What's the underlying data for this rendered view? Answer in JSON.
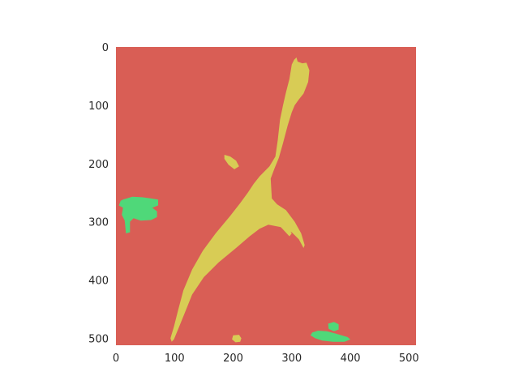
{
  "chart_data": {
    "type": "heatmap",
    "title": "",
    "xlabel": "",
    "ylabel": "",
    "xlim": [
      0,
      512
    ],
    "ylim": [
      512,
      0
    ],
    "grid": false,
    "x_ticks": [
      0,
      100,
      200,
      300,
      400,
      500
    ],
    "y_ticks": [
      0,
      100,
      200,
      300,
      400,
      500
    ],
    "classes": [
      {
        "id": "background",
        "color": "#d95e55"
      },
      {
        "id": "class-2",
        "color": "#d8cc55"
      },
      {
        "id": "class-3",
        "color": "#4fd879"
      }
    ],
    "regions": [
      {
        "class": "class-2",
        "name": "main-streak",
        "points": [
          [
            300,
            30
          ],
          [
            304,
            22
          ],
          [
            308,
            18
          ],
          [
            310,
            25
          ],
          [
            318,
            28
          ],
          [
            325,
            27
          ],
          [
            330,
            40
          ],
          [
            328,
            60
          ],
          [
            320,
            80
          ],
          [
            312,
            90
          ],
          [
            305,
            100
          ],
          [
            300,
            112
          ],
          [
            293,
            135
          ],
          [
            285,
            165
          ],
          [
            278,
            190
          ],
          [
            270,
            210
          ],
          [
            264,
            226
          ],
          [
            266,
            260
          ],
          [
            275,
            270
          ],
          [
            290,
            280
          ],
          [
            305,
            300
          ],
          [
            316,
            320
          ],
          [
            322,
            340
          ],
          [
            320,
            345
          ],
          [
            312,
            330
          ],
          [
            300,
            318
          ],
          [
            285,
            310
          ],
          [
            260,
            305
          ],
          [
            245,
            312
          ],
          [
            228,
            325
          ],
          [
            205,
            345
          ],
          [
            175,
            370
          ],
          [
            150,
            395
          ],
          [
            130,
            425
          ],
          [
            118,
            455
          ],
          [
            108,
            480
          ],
          [
            99,
            502
          ],
          [
            95,
            506
          ],
          [
            93,
            500
          ],
          [
            99,
            480
          ],
          [
            106,
            452
          ],
          [
            115,
            418
          ],
          [
            130,
            382
          ],
          [
            148,
            350
          ],
          [
            170,
            320
          ],
          [
            195,
            290
          ],
          [
            212,
            268
          ],
          [
            225,
            250
          ],
          [
            235,
            235
          ],
          [
            245,
            222
          ],
          [
            262,
            205
          ],
          [
            272,
            188
          ],
          [
            276,
            160
          ],
          [
            280,
            125
          ],
          [
            285,
            100
          ],
          [
            290,
            78
          ],
          [
            296,
            55
          ]
        ]
      },
      {
        "class": "class-2",
        "name": "side-branch",
        "points": [
          [
            185,
            185
          ],
          [
            195,
            188
          ],
          [
            205,
            195
          ],
          [
            210,
            205
          ],
          [
            202,
            210
          ],
          [
            192,
            202
          ],
          [
            185,
            192
          ]
        ]
      },
      {
        "class": "class-2",
        "name": "lower-right-branch",
        "points": [
          [
            275,
            295
          ],
          [
            290,
            305
          ],
          [
            300,
            320
          ],
          [
            296,
            325
          ],
          [
            284,
            312
          ],
          [
            272,
            300
          ]
        ]
      },
      {
        "class": "class-2",
        "name": "bottom-blob",
        "points": [
          [
            200,
            495
          ],
          [
            210,
            494
          ],
          [
            214,
            500
          ],
          [
            212,
            506
          ],
          [
            204,
            507
          ],
          [
            198,
            502
          ]
        ]
      },
      {
        "class": "class-3",
        "name": "left-cluster",
        "points": [
          [
            12,
            262
          ],
          [
            28,
            257
          ],
          [
            45,
            258
          ],
          [
            60,
            260
          ],
          [
            72,
            262
          ],
          [
            72,
            272
          ],
          [
            62,
            276
          ],
          [
            70,
            282
          ],
          [
            70,
            292
          ],
          [
            60,
            297
          ],
          [
            42,
            298
          ],
          [
            30,
            294
          ],
          [
            24,
            300
          ],
          [
            24,
            318
          ],
          [
            17,
            320
          ],
          [
            15,
            298
          ],
          [
            10,
            288
          ],
          [
            12,
            276
          ],
          [
            5,
            272
          ],
          [
            8,
            264
          ]
        ]
      },
      {
        "class": "class-3",
        "name": "bottom-right-cluster",
        "points": [
          [
            335,
            490
          ],
          [
            345,
            487
          ],
          [
            360,
            488
          ],
          [
            375,
            492
          ],
          [
            395,
            498
          ],
          [
            400,
            502
          ],
          [
            390,
            506
          ],
          [
            370,
            506
          ],
          [
            352,
            504
          ],
          [
            340,
            500
          ],
          [
            332,
            495
          ]
        ]
      },
      {
        "class": "class-3",
        "name": "bottom-right-blob",
        "points": [
          [
            362,
            475
          ],
          [
            372,
            472
          ],
          [
            380,
            476
          ],
          [
            380,
            485
          ],
          [
            372,
            488
          ],
          [
            363,
            484
          ]
        ]
      }
    ]
  }
}
